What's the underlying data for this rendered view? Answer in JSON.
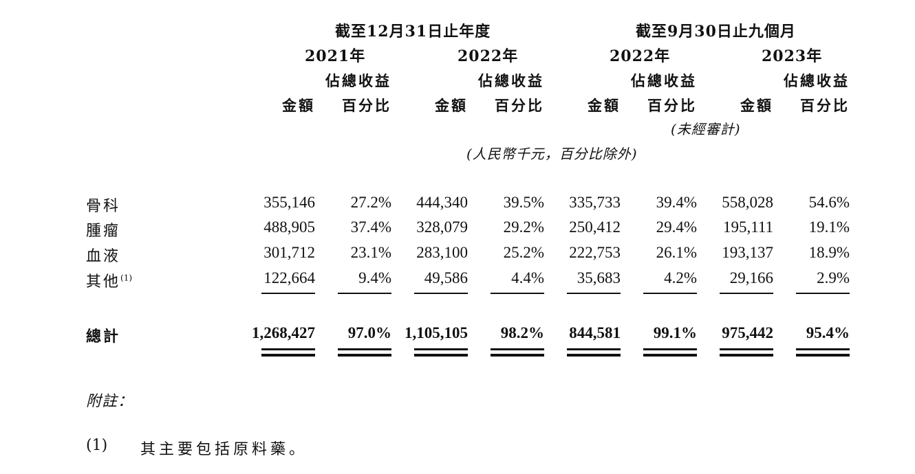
{
  "header": {
    "period_full_year": "截至12月31日止年度",
    "period_nine_months": "截至9月30日止九個月",
    "years": [
      "2021年",
      "2022年",
      "2022年",
      "2023年"
    ],
    "pct_header_line1": "佔總收益",
    "amount_header": "金額",
    "pct_header_line2": "百分比",
    "unaudited": "(未經審計)",
    "unit_note": "(人民幣千元，百分比除外)"
  },
  "rows": [
    {
      "label": "骨科",
      "footnote": "",
      "values": [
        "355,146",
        "27.2%",
        "444,340",
        "39.5%",
        "335,733",
        "39.4%",
        "558,028",
        "54.6%"
      ]
    },
    {
      "label": "腫瘤",
      "footnote": "",
      "values": [
        "488,905",
        "37.4%",
        "328,079",
        "29.2%",
        "250,412",
        "29.4%",
        "195,111",
        "19.1%"
      ]
    },
    {
      "label": "血液",
      "footnote": "",
      "values": [
        "301,712",
        "23.1%",
        "283,100",
        "25.2%",
        "222,753",
        "26.1%",
        "193,137",
        "18.9%"
      ]
    },
    {
      "label": "其他",
      "footnote": "(1)",
      "values": [
        "122,664",
        "9.4%",
        "49,586",
        "4.4%",
        "35,683",
        "4.2%",
        "29,166",
        "2.9%"
      ]
    }
  ],
  "total": {
    "label": "總計",
    "values": [
      "1,268,427",
      "97.0%",
      "1,105,105",
      "98.2%",
      "844,581",
      "99.1%",
      "975,442",
      "95.4%"
    ]
  },
  "notes": {
    "heading": "附註：",
    "items": [
      {
        "marker": "(1)",
        "text": "其主要包括原料藥。"
      }
    ]
  }
}
